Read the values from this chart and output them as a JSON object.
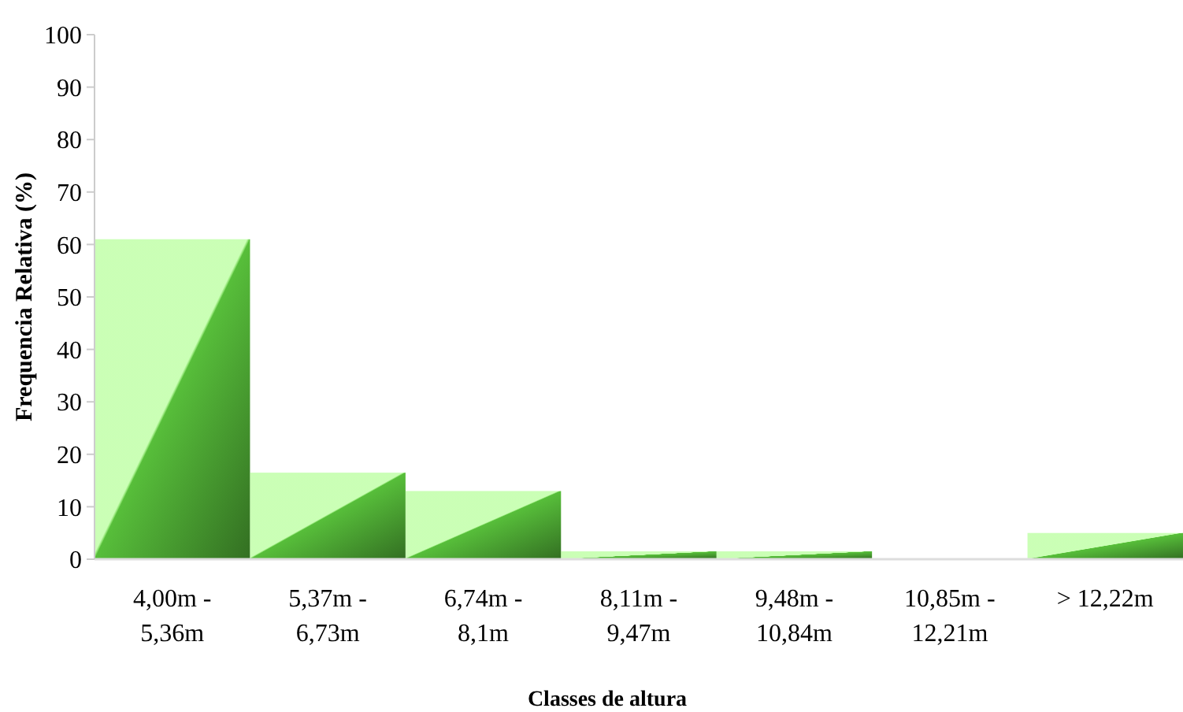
{
  "chart_data": {
    "type": "bar",
    "xlabel": "Classes de altura",
    "ylabel": "Frequencia Relativa (%)",
    "categories": [
      "4,00m -\n5,36m",
      "5,37m -\n6,73m",
      "6,74m -\n8,1m",
      "8,11m -\n9,47m",
      "9,48m -\n10,84m",
      "10,85m -\n12,21m",
      "> 12,22m"
    ],
    "values": [
      61,
      16.5,
      13,
      1.5,
      1.5,
      0,
      5
    ],
    "color": "#3f8a2a",
    "ylim": [
      0,
      100
    ],
    "yticks": [
      0,
      10,
      20,
      30,
      40,
      50,
      60,
      70,
      80,
      90,
      100
    ],
    "grid": false
  }
}
